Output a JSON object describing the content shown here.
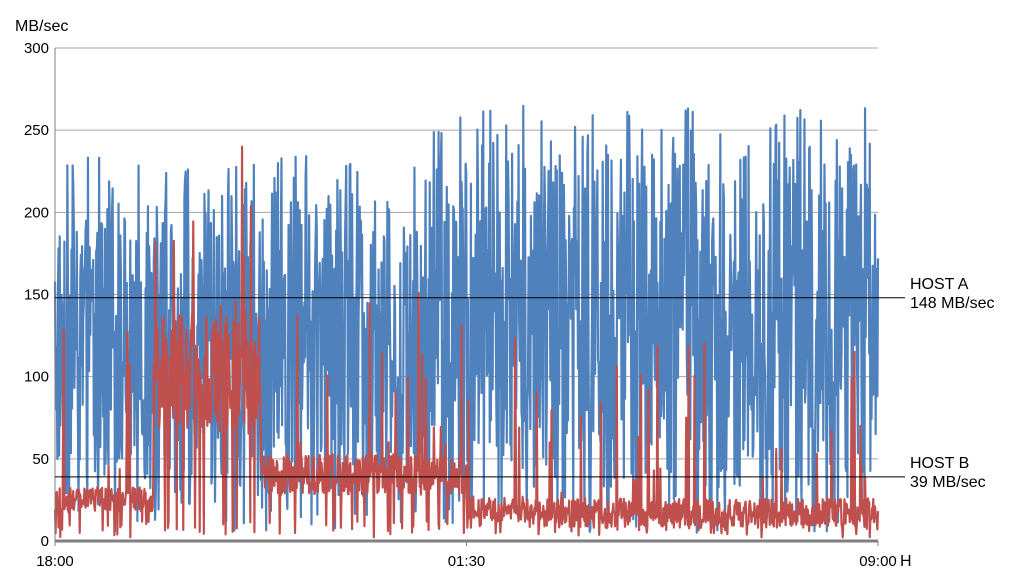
{
  "chart_data": {
    "type": "line",
    "ylabel": "MB/sec",
    "xlabel": "H",
    "ylim": [
      0,
      300
    ],
    "y_ticks": [
      0,
      50,
      100,
      150,
      200,
      250,
      300
    ],
    "x_range_hours": [
      18,
      33
    ],
    "x_ticks": [
      {
        "hour": 18,
        "label": "18:00"
      },
      {
        "hour": 25.5,
        "label": "01:30"
      },
      {
        "hour": 33,
        "label": "09:00"
      }
    ],
    "grid": true,
    "series": [
      {
        "id": "host_a",
        "color": "#4f81bd"
      },
      {
        "id": "host_b",
        "color": "#c0504d"
      }
    ],
    "reference_lines": [
      {
        "series": "host_a",
        "value": 148,
        "name": "HOST A",
        "value_label": "148 MB/sec"
      },
      {
        "series": "host_b",
        "value": 39,
        "name": "HOST B",
        "value_label": "39 MB/sec"
      }
    ]
  }
}
